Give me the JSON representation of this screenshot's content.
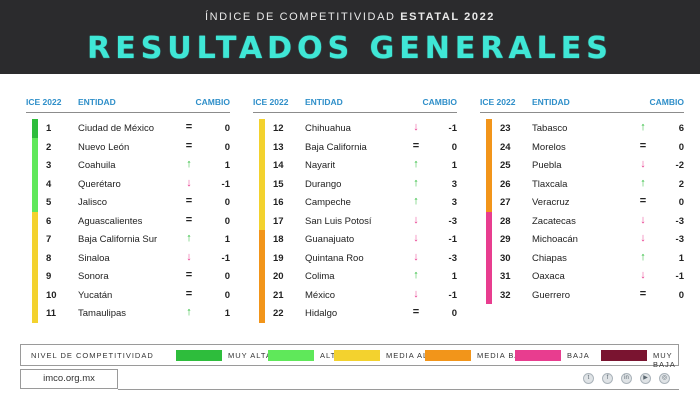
{
  "header": {
    "subtitle_prefix": "ÍNDICE DE COMPETITIVIDAD",
    "subtitle_bold": "ESTATAL 2022",
    "title": "RESULTADOS GENERALES"
  },
  "columns_header": {
    "rank": "ICE 2022",
    "entity": "ENTIDAD",
    "change": "CAMBIO"
  },
  "colors": {
    "muy_alta": "#2ebd3c",
    "alta": "#5fe85a",
    "media_alta": "#f3d22e",
    "media_baja": "#f2951a",
    "baja": "#e83d8f",
    "muy_baja": "#7a1430",
    "up": "#2ebd3c",
    "down": "#e83d8f"
  },
  "columns": [
    [
      {
        "rank": "1",
        "entity": "Ciudad de México",
        "arrow": "=",
        "change": "0",
        "level": "muy_alta"
      },
      {
        "rank": "2",
        "entity": "Nuevo León",
        "arrow": "=",
        "change": "0",
        "level": "alta"
      },
      {
        "rank": "3",
        "entity": "Coahuila",
        "arrow": "↑",
        "change": "1",
        "level": "alta"
      },
      {
        "rank": "4",
        "entity": "Querétaro",
        "arrow": "↓",
        "change": "-1",
        "level": "alta"
      },
      {
        "rank": "5",
        "entity": "Jalisco",
        "arrow": "=",
        "change": "0",
        "level": "alta"
      },
      {
        "rank": "6",
        "entity": "Aguascalientes",
        "arrow": "=",
        "change": "0",
        "level": "media_alta"
      },
      {
        "rank": "7",
        "entity": "Baja California Sur",
        "arrow": "↑",
        "change": "1",
        "level": "media_alta"
      },
      {
        "rank": "8",
        "entity": "Sinaloa",
        "arrow": "↓",
        "change": "-1",
        "level": "media_alta"
      },
      {
        "rank": "9",
        "entity": "Sonora",
        "arrow": "=",
        "change": "0",
        "level": "media_alta"
      },
      {
        "rank": "10",
        "entity": "Yucatán",
        "arrow": "=",
        "change": "0",
        "level": "media_alta"
      },
      {
        "rank": "11",
        "entity": "Tamaulipas",
        "arrow": "↑",
        "change": "1",
        "level": "media_alta"
      }
    ],
    [
      {
        "rank": "12",
        "entity": "Chihuahua",
        "arrow": "↓",
        "change": "-1",
        "level": "media_alta"
      },
      {
        "rank": "13",
        "entity": "Baja California",
        "arrow": "=",
        "change": "0",
        "level": "media_alta"
      },
      {
        "rank": "14",
        "entity": "Nayarit",
        "arrow": "↑",
        "change": "1",
        "level": "media_alta"
      },
      {
        "rank": "15",
        "entity": "Durango",
        "arrow": "↑",
        "change": "3",
        "level": "media_alta"
      },
      {
        "rank": "16",
        "entity": "Campeche",
        "arrow": "↑",
        "change": "3",
        "level": "media_alta"
      },
      {
        "rank": "17",
        "entity": "San Luis Potosí",
        "arrow": "↓",
        "change": "-3",
        "level": "media_alta"
      },
      {
        "rank": "18",
        "entity": "Guanajuato",
        "arrow": "↓",
        "change": "-1",
        "level": "media_baja"
      },
      {
        "rank": "19",
        "entity": "Quintana Roo",
        "arrow": "↓",
        "change": "-3",
        "level": "media_baja"
      },
      {
        "rank": "20",
        "entity": "Colima",
        "arrow": "↑",
        "change": "1",
        "level": "media_baja"
      },
      {
        "rank": "21",
        "entity": "México",
        "arrow": "↓",
        "change": "-1",
        "level": "media_baja"
      },
      {
        "rank": "22",
        "entity": "Hidalgo",
        "arrow": "=",
        "change": "0",
        "level": "media_baja"
      }
    ],
    [
      {
        "rank": "23",
        "entity": "Tabasco",
        "arrow": "↑",
        "change": "6",
        "level": "media_baja"
      },
      {
        "rank": "24",
        "entity": "Morelos",
        "arrow": "=",
        "change": "0",
        "level": "media_baja"
      },
      {
        "rank": "25",
        "entity": "Puebla",
        "arrow": "↓",
        "change": "-2",
        "level": "media_baja"
      },
      {
        "rank": "26",
        "entity": "Tlaxcala",
        "arrow": "↑",
        "change": "2",
        "level": "media_baja"
      },
      {
        "rank": "27",
        "entity": "Veracruz",
        "arrow": "=",
        "change": "0",
        "level": "media_baja"
      },
      {
        "rank": "28",
        "entity": "Zacatecas",
        "arrow": "↓",
        "change": "-3",
        "level": "baja"
      },
      {
        "rank": "29",
        "entity": "Michoacán",
        "arrow": "↓",
        "change": "-3",
        "level": "baja"
      },
      {
        "rank": "30",
        "entity": "Chiapas",
        "arrow": "↑",
        "change": "1",
        "level": "baja"
      },
      {
        "rank": "31",
        "entity": "Oaxaca",
        "arrow": "↓",
        "change": "-1",
        "level": "baja"
      },
      {
        "rank": "32",
        "entity": "Guerrero",
        "arrow": "=",
        "change": "0",
        "level": "baja"
      }
    ]
  ],
  "legend": {
    "title": "NIVEL DE COMPETITIVIDAD",
    "items": [
      {
        "label": "MUY ALTA",
        "level": "muy_alta"
      },
      {
        "label": "ALTA",
        "level": "alta"
      },
      {
        "label": "MEDIA ALTA",
        "level": "media_alta"
      },
      {
        "label": "MEDIA BAJA",
        "level": "media_baja"
      },
      {
        "label": "BAJA",
        "level": "baja"
      },
      {
        "label": "MUY BAJA",
        "level": "muy_baja"
      }
    ]
  },
  "footer": {
    "url": "imco.org.mx",
    "social_icons": [
      "twitter-icon",
      "facebook-icon",
      "linkedin-icon",
      "youtube-icon",
      "instagram-icon"
    ]
  }
}
